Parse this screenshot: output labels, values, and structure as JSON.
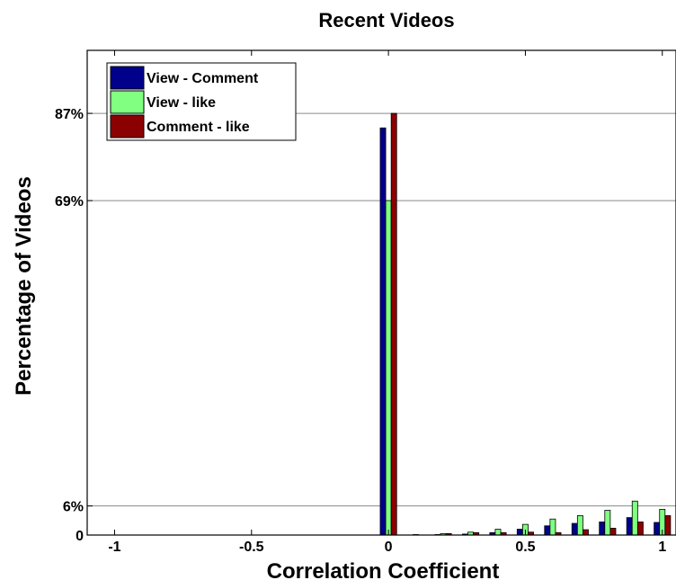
{
  "chart_data": {
    "type": "bar",
    "title": "Recent Videos",
    "xlabel": "Correlation Coefficient",
    "ylabel": "Percentage of Videos",
    "xlim": [
      -1.1,
      1.05
    ],
    "ylim": [
      0,
      100
    ],
    "x_ticks": [
      -1,
      -0.5,
      0,
      0.5,
      1
    ],
    "x_tick_labels": [
      "-1",
      "-0.5",
      "0",
      "0.5",
      "1"
    ],
    "y_ticks": [
      0,
      6,
      69,
      87
    ],
    "y_tick_labels": [
      "0",
      "6%",
      "69%",
      "87%"
    ],
    "grid": "horizontal at y ticks",
    "legend_position": "top-left",
    "x": [
      -1,
      -0.9,
      -0.8,
      -0.7,
      -0.6,
      -0.5,
      -0.4,
      -0.3,
      -0.2,
      -0.1,
      0,
      0.1,
      0.2,
      0.3,
      0.4,
      0.5,
      0.6,
      0.7,
      0.8,
      0.9,
      1
    ],
    "series": [
      {
        "name": "View - Comment",
        "color": "#00008B",
        "values": [
          0,
          0,
          0,
          0,
          0,
          0,
          0,
          0,
          0,
          0,
          84,
          0,
          0.1,
          0.2,
          0.5,
          1.2,
          1.9,
          2.4,
          2.7,
          3.6,
          2.6
        ]
      },
      {
        "name": "View - like",
        "color": "#80FF80",
        "values": [
          0,
          0,
          0,
          0,
          0,
          0,
          0,
          0,
          0,
          0,
          69,
          0.1,
          0.3,
          0.6,
          1.2,
          2.2,
          3.3,
          4.0,
          5.1,
          7.0,
          5.3
        ]
      },
      {
        "name": "Comment - like",
        "color": "#8B0000",
        "values": [
          0,
          0,
          0,
          0,
          0,
          0,
          0,
          0,
          0,
          0,
          87,
          0,
          0.3,
          0.5,
          0.5,
          0.6,
          0.5,
          1.1,
          1.4,
          2.7,
          4.0
        ]
      }
    ]
  }
}
